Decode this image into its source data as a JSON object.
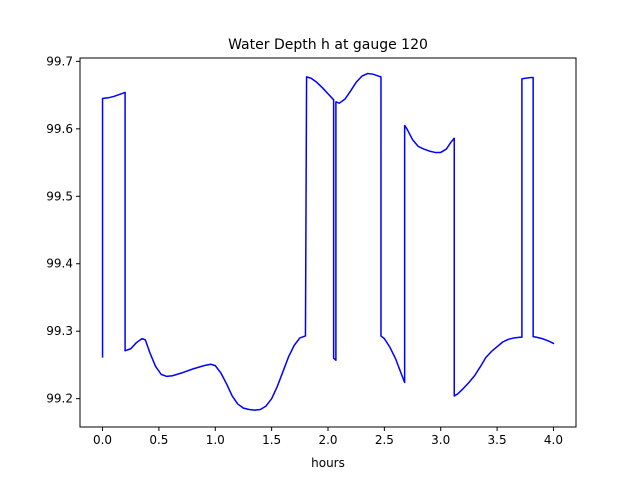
{
  "chart_data": {
    "type": "line",
    "title": "Water Depth h at gauge 120",
    "xlabel": "hours",
    "ylabel": "",
    "xlim": [
      -0.2,
      4.2
    ],
    "ylim": [
      99.158,
      99.705
    ],
    "xticks": [
      0.0,
      0.5,
      1.0,
      1.5,
      2.0,
      2.5,
      3.0,
      3.5,
      4.0
    ],
    "xtick_labels": [
      "0.0",
      "0.5",
      "1.0",
      "1.5",
      "2.0",
      "2.5",
      "3.0",
      "3.5",
      "4.0"
    ],
    "yticks": [
      99.2,
      99.3,
      99.4,
      99.5,
      99.6,
      99.7
    ],
    "ytick_labels": [
      "99.2",
      "99.3",
      "99.4",
      "99.5",
      "99.6",
      "99.7"
    ],
    "grid": false,
    "line_color": "#0000ff",
    "series": [
      {
        "x": [
          0.0,
          0.0,
          0.05,
          0.1,
          0.15,
          0.2,
          0.2,
          0.25,
          0.3,
          0.35,
          0.38,
          0.42,
          0.47,
          0.52,
          0.57,
          0.62,
          0.7,
          0.8,
          0.9,
          0.96,
          1.0,
          1.05,
          1.1,
          1.15,
          1.2,
          1.25,
          1.3,
          1.35,
          1.4,
          1.45,
          1.5,
          1.55,
          1.6,
          1.65,
          1.7,
          1.75,
          1.8,
          1.81,
          1.85,
          1.9,
          1.95,
          2.0,
          2.05,
          2.05,
          2.07,
          2.07,
          2.1,
          2.15,
          2.2,
          2.25,
          2.3,
          2.35,
          2.4,
          2.45,
          2.47,
          2.47,
          2.5,
          2.55,
          2.6,
          2.65,
          2.68,
          2.68,
          2.7,
          2.75,
          2.8,
          2.85,
          2.9,
          2.95,
          3.0,
          3.05,
          3.09,
          3.12,
          3.12,
          3.15,
          3.2,
          3.25,
          3.3,
          3.35,
          3.4,
          3.45,
          3.5,
          3.55,
          3.6,
          3.65,
          3.7,
          3.72,
          3.72,
          3.75,
          3.8,
          3.82,
          3.82,
          3.85,
          3.9,
          3.95,
          4.0
        ],
        "y": [
          99.262,
          99.645,
          99.646,
          99.648,
          99.651,
          99.654,
          99.271,
          99.274,
          99.283,
          99.289,
          99.287,
          99.268,
          99.248,
          99.236,
          99.233,
          99.234,
          99.238,
          99.244,
          99.249,
          99.251,
          99.249,
          99.238,
          99.222,
          99.204,
          99.192,
          99.186,
          99.184,
          99.183,
          99.184,
          99.189,
          99.2,
          99.218,
          99.24,
          99.262,
          99.279,
          99.29,
          99.293,
          99.677,
          99.675,
          99.669,
          99.661,
          99.652,
          99.643,
          99.26,
          99.257,
          99.64,
          99.638,
          99.644,
          99.656,
          99.669,
          99.678,
          99.682,
          99.681,
          99.678,
          99.677,
          99.293,
          99.289,
          99.276,
          99.259,
          99.237,
          99.224,
          99.605,
          99.6,
          99.584,
          99.574,
          99.57,
          99.567,
          99.565,
          99.565,
          99.57,
          99.58,
          99.586,
          99.204,
          99.207,
          99.215,
          99.224,
          99.234,
          99.247,
          99.261,
          99.27,
          99.277,
          99.284,
          99.288,
          99.29,
          99.291,
          99.291,
          99.674,
          99.675,
          99.676,
          99.676,
          99.292,
          99.291,
          99.289,
          99.286,
          99.282
        ]
      }
    ]
  }
}
